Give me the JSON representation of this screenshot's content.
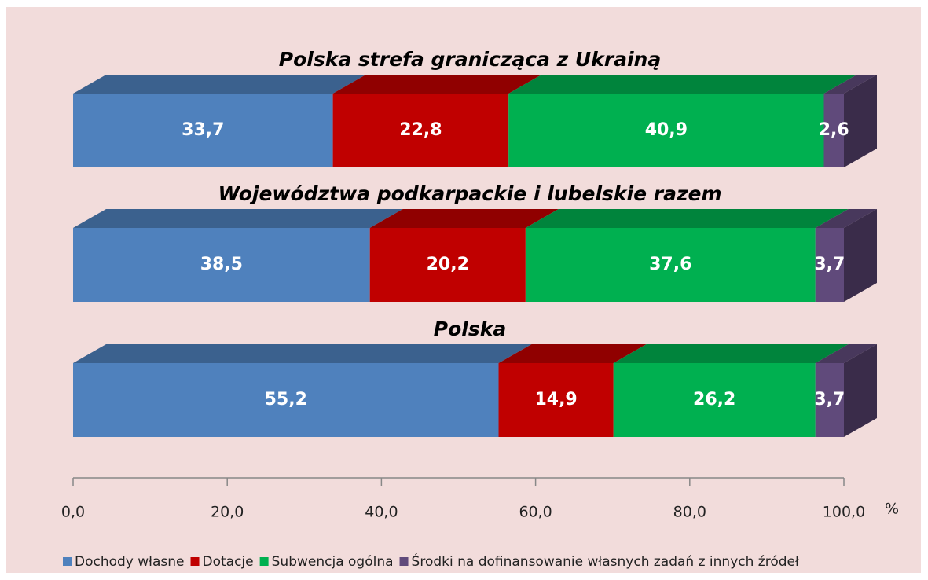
{
  "chart_data": {
    "type": "bar",
    "orientation": "horizontal",
    "stacked": true,
    "categories": [
      "Polska strefa granicząca z Ukrainą",
      "Województwa podkarpackie i lubelskie razem",
      "Polska"
    ],
    "series": [
      {
        "name": "Dochody własne",
        "color": "#4f81bd",
        "values": [
          33.7,
          38.5,
          55.2
        ],
        "value_labels": [
          "33,7",
          "38,5",
          "55,2"
        ]
      },
      {
        "name": "Dotacje",
        "color": "#c00000",
        "values": [
          22.8,
          20.2,
          14.9
        ],
        "value_labels": [
          "22,8",
          "20,2",
          "14,9"
        ]
      },
      {
        "name": "Subwencja ogólna",
        "color": "#00b050",
        "values": [
          40.9,
          37.6,
          26.2
        ],
        "value_labels": [
          "40,9",
          "37,6",
          "26,2"
        ]
      },
      {
        "name": "Środki na dofinansowanie własnych zadań z innych źródeł",
        "color": "#604a7b",
        "values": [
          2.6,
          3.7,
          3.7
        ],
        "value_labels": [
          "2,6",
          "3,7",
          "3,7"
        ]
      }
    ],
    "xlim": [
      0,
      100
    ],
    "xticks": [
      {
        "value": 0,
        "label": "0,0"
      },
      {
        "value": 20,
        "label": "20,0"
      },
      {
        "value": 40,
        "label": "40,0"
      },
      {
        "value": 60,
        "label": "60,0"
      },
      {
        "value": 80,
        "label": "80,0"
      },
      {
        "value": 100,
        "label": "100,0"
      }
    ],
    "xlabel": "%",
    "legend": "bottom"
  }
}
